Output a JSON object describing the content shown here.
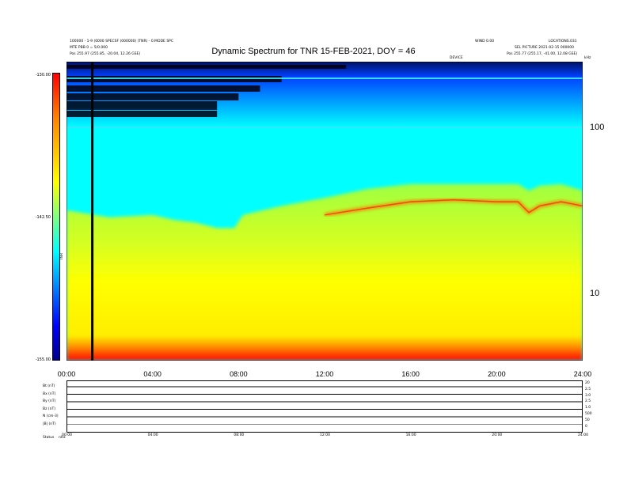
{
  "header": {
    "title": "Dynamic Spectrum for TNR 15-FEB-2021, DOY = 46",
    "left_line1": "100000 - 1-9 (0000 SPECSF (000000) (TNR) - 0.MODE SPC",
    "left_line2": "MTE PBB 0 = 5/0.000",
    "left_pos": "Pos    255.97 (255.85, -20.04, 12.26 GSE)",
    "right_line1": "WIND 0.00",
    "right_line2": "LOCATIONS.031",
    "right_line3": "SEL PICTURE  2021-02-15 000000",
    "right_pos": "Pos    255.77 (255.17, -41.00, 12.08 GSE)",
    "center_small": "DEVICE",
    "corner_small": "kHz"
  },
  "colorbar": {
    "label": "TNR",
    "ticks": [
      "-130.00",
      "-142.50",
      "-155.00"
    ]
  },
  "bottom_panel": {
    "row_labels": [
      "Bt (nT)",
      "Bx (nT)",
      "By (nT)",
      "Bz (nT)",
      "N (cm-3)",
      "|B| (nT)"
    ],
    "footer_left": "Status",
    "footer_left2": "nHz",
    "x_small_ticks": [
      "00:00",
      "04:00",
      "08:00",
      "12:00",
      "16:00",
      "20:00",
      "24:00"
    ],
    "right_ticks": [
      "20",
      "2.5",
      "3.0",
      "2.5",
      "1.0",
      "500",
      "50",
      "0"
    ]
  },
  "chart_data": {
    "type": "heatmap",
    "title": "Dynamic Spectrum for TNR 15-FEB-2021, DOY = 46",
    "x_ticks": [
      "00:00",
      "04:00",
      "08:00",
      "12:00",
      "16:00",
      "20:00",
      "24:00"
    ],
    "xlim_hours": [
      0,
      24
    ],
    "y_scale": "log",
    "y_ticks": [
      "100",
      "10"
    ],
    "y_unit": "kHz",
    "ylim_khz": [
      4,
      250
    ],
    "colorbar_range": [
      -155.0,
      -130.0
    ],
    "colorbar_ticks": [
      -130.0,
      -142.5,
      -155.0
    ],
    "colormap": [
      "#00008f",
      "#0000ff",
      "#00ffff",
      "#ffff00",
      "#ff7f00",
      "#ff0000"
    ],
    "data_gap_hour": 1.2,
    "emission_band": {
      "description_free": true,
      "hours": [
        0,
        2,
        4,
        5,
        6,
        7,
        7.8,
        8.2,
        10,
        12,
        14,
        16,
        18,
        20,
        21,
        21.5,
        22,
        23,
        24
      ],
      "green_edge_khz": [
        32,
        29,
        30,
        28,
        27,
        25,
        25,
        30,
        34,
        38,
        43,
        46,
        46,
        46,
        46,
        42,
        45,
        46,
        42
      ],
      "red_ridge_khz": [
        0,
        0,
        0,
        0,
        0,
        0,
        0,
        0,
        0,
        30,
        33,
        36,
        37,
        36,
        36,
        31,
        34,
        36,
        34
      ]
    }
  }
}
